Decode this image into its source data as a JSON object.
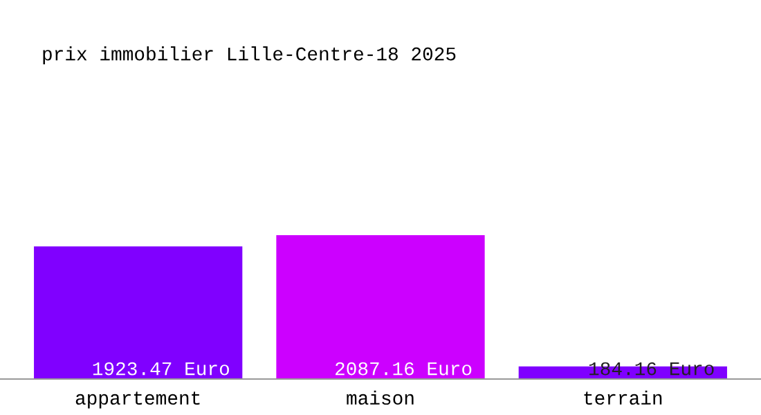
{
  "chart_data": {
    "type": "bar",
    "title": "prix immobilier Lille-Centre-18 2025",
    "categories": [
      "appartement",
      "maison",
      "terrain"
    ],
    "values": [
      1923.47,
      2087.16,
      184.16
    ],
    "colors": [
      "#8000ff",
      "#cc00ff",
      "#7f00ff"
    ],
    "value_labels": [
      "1923.47 Euro",
      "2087.16 Euro",
      "184.16 Euro"
    ],
    "grid": false,
    "legend": false
  }
}
